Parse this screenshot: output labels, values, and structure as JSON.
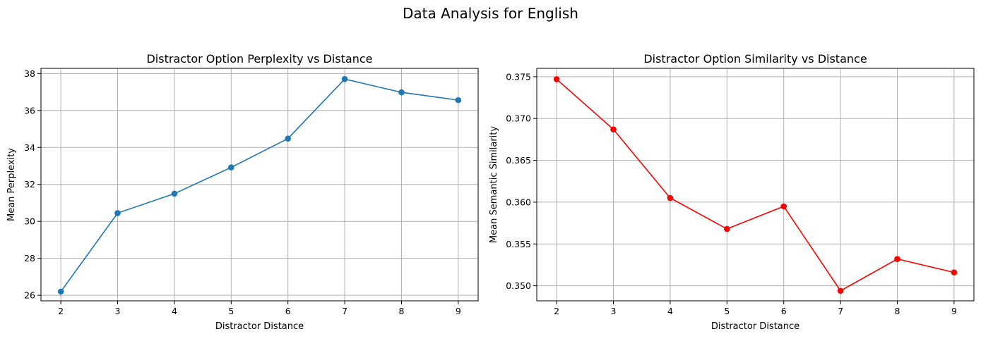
{
  "figure_title": "Data Analysis for English",
  "chart_data": [
    {
      "type": "line",
      "title": "Distractor Option Perplexity vs Distance",
      "xlabel": "Distractor Distance",
      "ylabel": "Mean Perplexity",
      "x": [
        2,
        3,
        4,
        5,
        6,
        7,
        8,
        9
      ],
      "series": [
        {
          "values": [
            26.2,
            30.45,
            31.5,
            32.92,
            34.48,
            37.7,
            36.98,
            36.56
          ],
          "color": "#1f77b4"
        }
      ],
      "xticks": [
        2,
        3,
        4,
        5,
        6,
        7,
        8,
        9
      ],
      "yticks": [
        26,
        28,
        30,
        32,
        34,
        36,
        38
      ],
      "xlim": [
        1.65,
        9.35
      ],
      "ylim": [
        25.7,
        38.28
      ],
      "ytick_decimals": 0,
      "grid": true
    },
    {
      "type": "line",
      "title": "Distractor Option Similarity vs Distance",
      "xlabel": "Distractor Distance",
      "ylabel": "Mean Semantic Similarity",
      "x": [
        2,
        3,
        4,
        5,
        6,
        7,
        8,
        9
      ],
      "series": [
        {
          "values": [
            0.3747,
            0.3687,
            0.3605,
            0.3568,
            0.3595,
            0.3494,
            0.3532,
            0.3516
          ],
          "color": "#ff0000"
        }
      ],
      "xticks": [
        2,
        3,
        4,
        5,
        6,
        7,
        8,
        9
      ],
      "yticks": [
        0.35,
        0.355,
        0.36,
        0.365,
        0.37,
        0.375
      ],
      "xlim": [
        1.65,
        9.35
      ],
      "ylim": [
        0.3482,
        0.376
      ],
      "ytick_decimals": 3,
      "grid": true
    }
  ]
}
